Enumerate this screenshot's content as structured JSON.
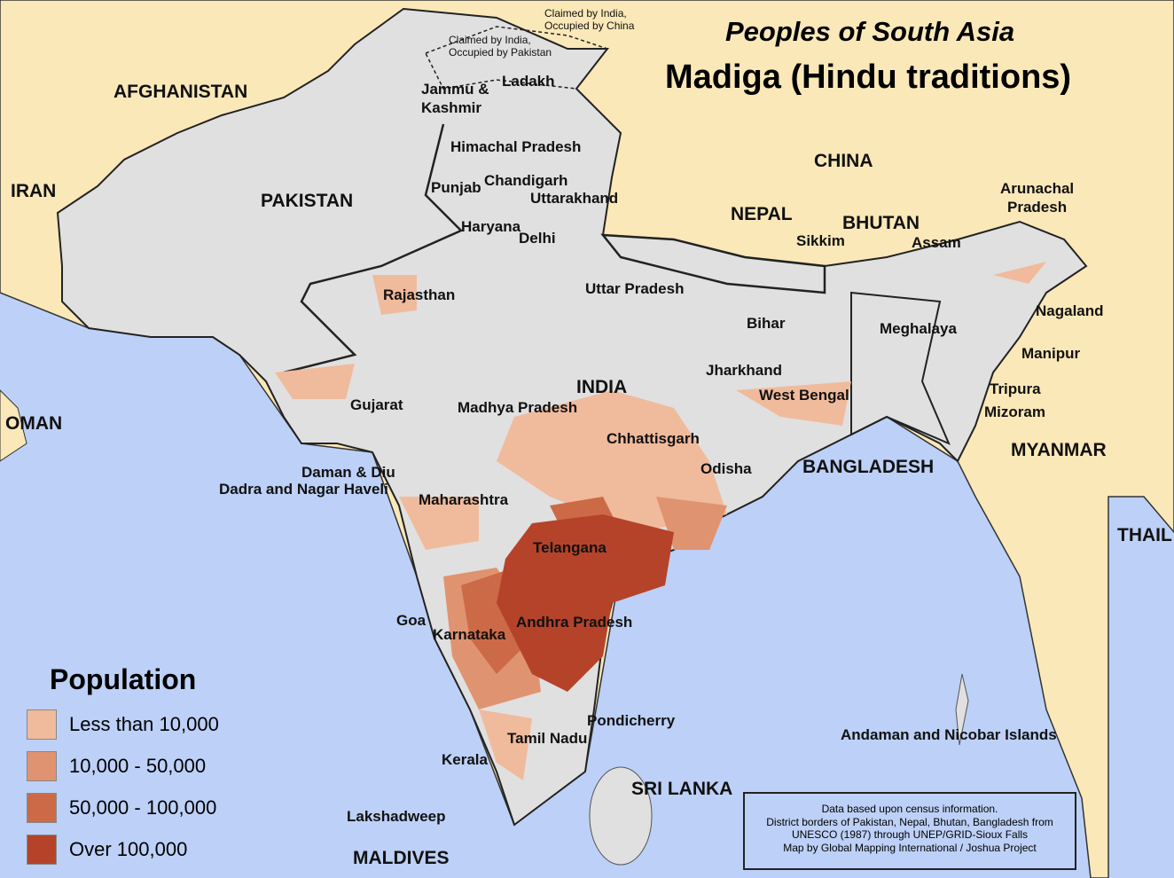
{
  "header": {
    "subtitle": "Peoples of South Asia",
    "title": "Madiga (Hindu traditions)"
  },
  "colors": {
    "sea": "#bdd0f7",
    "land_outside": "#fbe8b8",
    "region": "#e0e0e0",
    "class1": "#f0bb9c",
    "class2": "#e09370",
    "class3": "#cc6a48",
    "class4": "#b5432a"
  },
  "legend": {
    "title": "Population",
    "items": [
      {
        "label": "Less than 10,000",
        "color": "#f0bb9c"
      },
      {
        "label": "10,000 - 50,000",
        "color": "#e09370"
      },
      {
        "label": "50,000 - 100,000",
        "color": "#cc6a48"
      },
      {
        "label": "Over 100,000",
        "color": "#b5432a"
      }
    ]
  },
  "countries": {
    "afghanistan": "AFGHANISTAN",
    "iran": "IRAN",
    "pakistan": "PAKISTAN",
    "china": "CHINA",
    "nepal": "NEPAL",
    "bhutan": "BHUTAN",
    "india": "INDIA",
    "bangladesh": "BANGLADESH",
    "myanmar": "MYANMAR",
    "oman": "OMAN",
    "thailand": "THAIL",
    "sri_lanka": "SRI LANKA",
    "maldives": "MALDIVES"
  },
  "notes": {
    "china_claim": "Claimed by India,\nOccupied by China",
    "pak_claim": "Claimed by India,\nOccupied by Pakistan"
  },
  "states": {
    "jk": "Jammu &\nKashmir",
    "ladakh": "Ladakh",
    "hp": "Himachal Pradesh",
    "punjab": "Punjab",
    "chandigarh": "Chandigarh",
    "uttarakhand": "Uttarakhand",
    "haryana": "Haryana",
    "delhi": "Delhi",
    "rajasthan": "Rajasthan",
    "up": "Uttar Pradesh",
    "bihar": "Bihar",
    "sikkim": "Sikkim",
    "assam": "Assam",
    "arunachal": "Arunachal\nPradesh",
    "nagaland": "Nagaland",
    "meghalaya": "Meghalaya",
    "manipur": "Manipur",
    "tripura": "Tripura",
    "mizoram": "Mizoram",
    "jharkhand": "Jharkhand",
    "wb": "West Bengal",
    "gujarat": "Gujarat",
    "mp": "Madhya Pradesh",
    "chhattisgarh": "Chhattisgarh",
    "odisha": "Odisha",
    "daman": "Daman & Diu",
    "dadra": "Dadra and Nagar Haveli",
    "maharashtra": "Maharashtra",
    "telangana": "Telangana",
    "goa": "Goa",
    "karnataka": "Karnataka",
    "ap": "Andhra Pradesh",
    "pondicherry": "Pondicherry",
    "tn": "Tamil Nadu",
    "kerala": "Kerala",
    "lakshadweep": "Lakshadweep",
    "andaman": "Andaman and Nicobar Islands"
  },
  "credits": [
    "Data based upon census information.",
    "District borders of Pakistan, Nepal, Bhutan, Bangladesh from",
    "UNESCO (1987) through UNEP/GRID-Sioux Falls",
    "Map by Global Mapping International / Joshua Project"
  ]
}
